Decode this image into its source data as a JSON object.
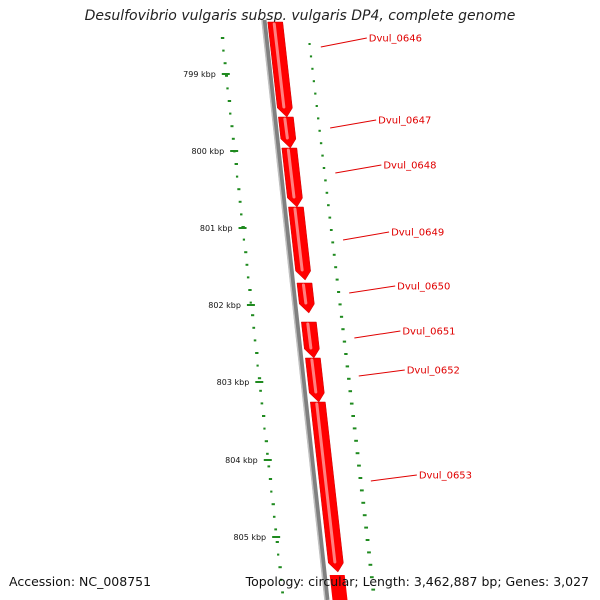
{
  "title": "Desulfovibrio vulgaris subsp. vulgaris DP4, complete genome",
  "footer": {
    "accession": "Accession: NC_008751",
    "summary": "Topology: circular; Length: 3,462,887 bp; Genes: 3,027"
  },
  "colors": {
    "gene": "#ff0000",
    "gene_highlight": "#ff8080",
    "label": "#e00000",
    "backbone": "#808080",
    "gc_skew": "#1f8a1f"
  },
  "ticks": [
    "799 kbp",
    "800 kbp",
    "801 kbp",
    "802 kbp",
    "803 kbp",
    "804 kbp",
    "805 kbp"
  ],
  "genes": [
    "Dvul_0646",
    "Dvul_0647",
    "Dvul_0648",
    "Dvul_0649",
    "Dvul_0650",
    "Dvul_0651",
    "Dvul_0652",
    "Dvul_0653"
  ]
}
